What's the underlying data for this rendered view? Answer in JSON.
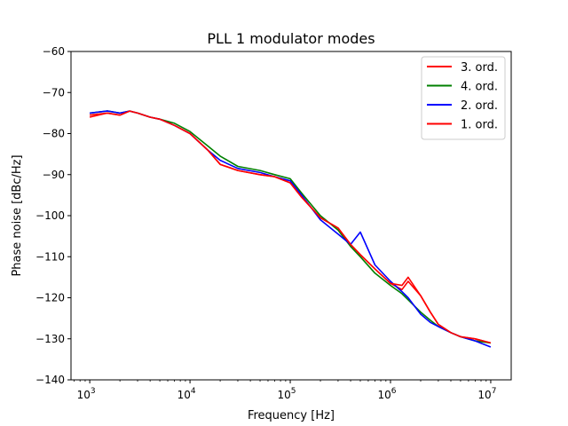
{
  "chart_data": {
    "type": "line",
    "title": "PLL 1 modulator modes",
    "xlabel": "Frequency [Hz]",
    "ylabel": "Phase noise [dBc/Hz]",
    "xscale": "log",
    "xlim": [
      650,
      16000000
    ],
    "ylim": [
      -140,
      -60
    ],
    "grid": false,
    "legend_placement": "top-right",
    "x_ticks": [
      {
        "value": 1000,
        "base": "10",
        "exp": "3"
      },
      {
        "value": 10000,
        "base": "10",
        "exp": "4"
      },
      {
        "value": 100000,
        "base": "10",
        "exp": "5"
      },
      {
        "value": 1000000,
        "base": "10",
        "exp": "6"
      },
      {
        "value": 10000000,
        "base": "10",
        "exp": "7"
      }
    ],
    "y_ticks": [
      -60,
      -70,
      -80,
      -90,
      -100,
      -110,
      -120,
      -130,
      -140
    ],
    "y_tick_labels": [
      "−60",
      "−70",
      "−80",
      "−90",
      "−100",
      "−110",
      "−120",
      "−130",
      "−140"
    ],
    "series": [
      {
        "name": "3. ord.",
        "color": "#ff0000",
        "x": [
          1000,
          1500,
          2000,
          2500,
          3000,
          4000,
          5000,
          7000,
          10000,
          15000,
          20000,
          30000,
          50000,
          70000,
          100000,
          130000,
          200000,
          300000,
          400000,
          500000,
          700000,
          1000000,
          1300000,
          1500000,
          2000000,
          2500000,
          3000000,
          4000000,
          5000000,
          7000000,
          10000000
        ],
        "y": [
          -75.5,
          -75,
          -75.5,
          -74.5,
          -75,
          -76,
          -76.5,
          -78,
          -80,
          -84,
          -87.5,
          -89,
          -90,
          -90.5,
          -92,
          -95.5,
          -100.5,
          -103,
          -107,
          -109.5,
          -113,
          -116.5,
          -118,
          -116,
          -119.5,
          -123.5,
          -126.5,
          -128.5,
          -129.5,
          -130,
          -131
        ]
      },
      {
        "name": "4. ord.",
        "color": "#008000",
        "x": [
          1000,
          1500,
          2000,
          2500,
          3000,
          4000,
          5000,
          7000,
          10000,
          15000,
          20000,
          30000,
          50000,
          70000,
          100000,
          130000,
          200000,
          300000,
          400000,
          500000,
          700000,
          1000000,
          1300000,
          1500000,
          2000000,
          2500000,
          3000000,
          4000000,
          5000000,
          7000000,
          10000000
        ],
        "y": [
          -75,
          -74.5,
          -75,
          -74.5,
          -75,
          -76,
          -76.5,
          -77.5,
          -79.5,
          -83,
          -85.5,
          -88,
          -89,
          -90,
          -91,
          -94.5,
          -100,
          -103.5,
          -107.5,
          -110,
          -114,
          -117,
          -119,
          -120.5,
          -123.5,
          -125.5,
          -127,
          -128.5,
          -129.5,
          -130.5,
          -131
        ]
      },
      {
        "name": "2. ord.",
        "color": "#0000ff",
        "x": [
          1000,
          1500,
          2000,
          2500,
          3000,
          4000,
          5000,
          7000,
          10000,
          15000,
          20000,
          30000,
          50000,
          70000,
          100000,
          130000,
          200000,
          300000,
          400000,
          500000,
          700000,
          1000000,
          1300000,
          1500000,
          2000000,
          2500000,
          3000000,
          4000000,
          5000000,
          7000000,
          10000000
        ],
        "y": [
          -75,
          -74.5,
          -75,
          -74.5,
          -75,
          -76,
          -76.5,
          -78,
          -80,
          -84,
          -86.5,
          -88.5,
          -89.5,
          -90.5,
          -91.5,
          -95,
          -101,
          -104.5,
          -107,
          -104,
          -112,
          -116,
          -118.5,
          -120,
          -124,
          -126,
          -127,
          -128.5,
          -129.5,
          -130.5,
          -132
        ]
      },
      {
        "name": "1. ord.",
        "color": "#ff0000",
        "x": [
          1000,
          1500,
          2000,
          2500,
          3000,
          4000,
          5000,
          7000,
          10000,
          15000,
          20000,
          30000,
          50000,
          70000,
          100000,
          130000,
          200000,
          300000,
          400000,
          500000,
          700000,
          1000000,
          1300000,
          1500000,
          2000000,
          2500000,
          3000000,
          4000000,
          5000000,
          7000000,
          10000000
        ],
        "y": [
          -76,
          -75,
          -75.5,
          -74.5,
          -75,
          -76,
          -76.5,
          -78,
          -80,
          -84,
          -87.5,
          -89,
          -90,
          -90.5,
          -92,
          -95.5,
          -100.5,
          -103,
          -107,
          -109.5,
          -113,
          -116.5,
          -117,
          -115,
          -119.5,
          -123.5,
          -126.5,
          -128.5,
          -129.5,
          -130,
          -131
        ]
      }
    ]
  }
}
